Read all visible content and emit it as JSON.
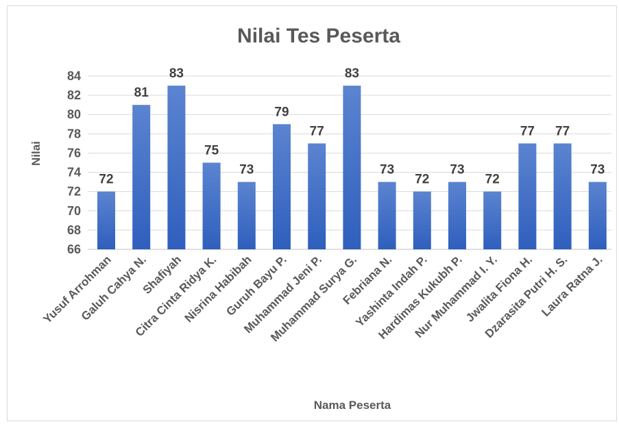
{
  "chart_data": {
    "type": "bar",
    "title": "Nilai Tes Peserta",
    "xlabel": "Nama Peserta",
    "ylabel": "Nilai",
    "ylim": [
      66,
      84
    ],
    "yticks": [
      "66",
      "68",
      "70",
      "72",
      "74",
      "76",
      "78",
      "80",
      "82",
      "84"
    ],
    "grid": true,
    "categories": [
      "Yusuf Arrohman",
      "Galuh Cahya N.",
      "Shafiyah",
      "Citra Cinta Ridya K.",
      "Nisrina Habibah",
      "Guruh Bayu P.",
      "Muhammad Jeni P.",
      "Muhammad Surya G.",
      "Febriana N.",
      "Yashinta Indah P.",
      "Hardimas Kukubh P.",
      "Nur Muhammad I. Y.",
      "Jwalita Fiona H.",
      "Dzarasita Putri H. S.",
      "Laura Ratna J."
    ],
    "values": [
      72,
      81,
      83,
      75,
      73,
      79,
      77,
      83,
      73,
      72,
      73,
      72,
      77,
      77,
      73
    ],
    "bar_color_top": "#5b84d0",
    "bar_color_bottom": "#2f5fbd"
  }
}
